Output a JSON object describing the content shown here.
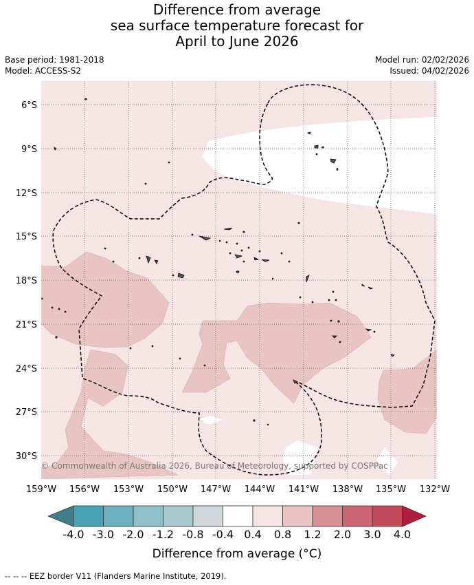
{
  "title": {
    "line1": "Difference from average",
    "line2": "sea surface temperature forecast for",
    "line3": "April to June 2026"
  },
  "meta": {
    "base_period": "Base period: 1981-2018",
    "model": "Model: ACCESS-S2",
    "model_run": "Model run: 02/02/2026",
    "issued": "Issued: 04/02/2026"
  },
  "map": {
    "lat_labels": [
      "6°S",
      "9°S",
      "12°S",
      "15°S",
      "18°S",
      "21°S",
      "24°S",
      "27°S",
      "30°S"
    ],
    "lon_labels": [
      "159°W",
      "156°W",
      "153°W",
      "150°W",
      "147°W",
      "144°W",
      "141°W",
      "138°W",
      "135°W",
      "132°W"
    ],
    "copyright": "© Commonwealth of Australia 2026, Bureau of Meteorology, supported by COSPPac"
  },
  "legend": {
    "tick_labels": [
      "-4.0",
      "-3.0",
      "-2.0",
      "-1.2",
      "-0.8",
      "-0.4",
      "0.4",
      "0.8",
      "1.2",
      "2.0",
      "3.0",
      "4.0"
    ],
    "colors": [
      "#3e7f8b",
      "#47a3b4",
      "#6bb0bf",
      "#8fbfca",
      "#a9c8cd",
      "#d0d8dc",
      "#ffffff",
      "#f5e6e5",
      "#e8c5c2",
      "#d98f96",
      "#cc6672",
      "#c1495a",
      "#b01c3b"
    ],
    "label": "Difference from average (°C)"
  },
  "footnote": "--  --  -- EEZ border V11 (Flanders Marine Institute, 2019)."
}
